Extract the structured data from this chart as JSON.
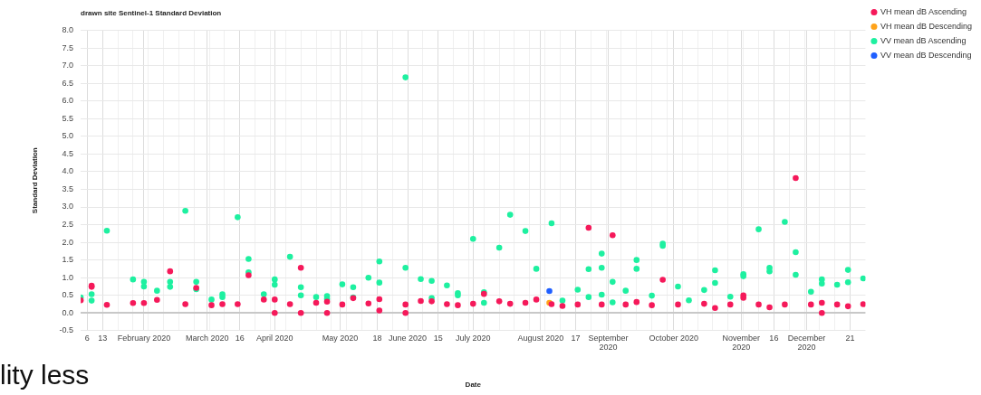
{
  "chart_data": {
    "type": "scatter",
    "title": "drawn site Sentinel-1 Standard Deviation",
    "xlabel": "Date",
    "ylabel": "Standard Deviation",
    "annotations": [
      "lity less"
    ],
    "xlim": [
      "2020-01-03",
      "2020-12-28"
    ],
    "xticks": [
      {
        "value": "2020-01-06",
        "label": "6"
      },
      {
        "value": "2020-01-13",
        "label": "13"
      },
      {
        "value": "2020-01-20",
        "label": null
      },
      {
        "value": "2020-01-27",
        "label": null
      },
      {
        "value": "2020-02-01",
        "label": "February 2020"
      },
      {
        "value": "2020-02-03",
        "label": null
      },
      {
        "value": "2020-02-10",
        "label": null
      },
      {
        "value": "2020-02-17",
        "label": null
      },
      {
        "value": "2020-02-24",
        "label": null
      },
      {
        "value": "2020-03-01",
        "label": "March 2020"
      },
      {
        "value": "2020-03-02",
        "label": null
      },
      {
        "value": "2020-03-09",
        "label": null
      },
      {
        "value": "2020-03-16",
        "label": "16"
      },
      {
        "value": "2020-03-23",
        "label": null
      },
      {
        "value": "2020-03-30",
        "label": null
      },
      {
        "value": "2020-04-01",
        "label": "April 2020"
      },
      {
        "value": "2020-04-06",
        "label": null
      },
      {
        "value": "2020-04-13",
        "label": null
      },
      {
        "value": "2020-04-20",
        "label": null
      },
      {
        "value": "2020-04-27",
        "label": null
      },
      {
        "value": "2020-05-01",
        "label": "May 2020"
      },
      {
        "value": "2020-05-04",
        "label": null
      },
      {
        "value": "2020-05-11",
        "label": null
      },
      {
        "value": "2020-05-18",
        "label": "18"
      },
      {
        "value": "2020-05-25",
        "label": null
      },
      {
        "value": "2020-06-01",
        "label": "June 2020"
      },
      {
        "value": "2020-06-08",
        "label": null
      },
      {
        "value": "2020-06-15",
        "label": "15"
      },
      {
        "value": "2020-06-22",
        "label": null
      },
      {
        "value": "2020-06-29",
        "label": null
      },
      {
        "value": "2020-07-01",
        "label": "July 2020"
      },
      {
        "value": "2020-07-06",
        "label": null
      },
      {
        "value": "2020-07-13",
        "label": null
      },
      {
        "value": "2020-07-20",
        "label": null
      },
      {
        "value": "2020-07-27",
        "label": null
      },
      {
        "value": "2020-08-01",
        "label": "August 2020"
      },
      {
        "value": "2020-08-03",
        "label": null
      },
      {
        "value": "2020-08-10",
        "label": null
      },
      {
        "value": "2020-08-17",
        "label": "17"
      },
      {
        "value": "2020-08-24",
        "label": null
      },
      {
        "value": "2020-08-31",
        "label": null
      },
      {
        "value": "2020-09-01",
        "label": "September 2020"
      },
      {
        "value": "2020-09-07",
        "label": null
      },
      {
        "value": "2020-09-14",
        "label": null
      },
      {
        "value": "2020-09-21",
        "label": null
      },
      {
        "value": "2020-09-28",
        "label": null
      },
      {
        "value": "2020-10-01",
        "label": "October 2020"
      },
      {
        "value": "2020-10-05",
        "label": null
      },
      {
        "value": "2020-10-12",
        "label": null
      },
      {
        "value": "2020-10-19",
        "label": null
      },
      {
        "value": "2020-10-26",
        "label": null
      },
      {
        "value": "2020-11-01",
        "label": "November 2020"
      },
      {
        "value": "2020-11-02",
        "label": null
      },
      {
        "value": "2020-11-09",
        "label": null
      },
      {
        "value": "2020-11-16",
        "label": "16"
      },
      {
        "value": "2020-11-23",
        "label": null
      },
      {
        "value": "2020-11-30",
        "label": null
      },
      {
        "value": "2020-12-01",
        "label": "December 2020"
      },
      {
        "value": "2020-12-07",
        "label": null
      },
      {
        "value": "2020-12-14",
        "label": null
      },
      {
        "value": "2020-12-21",
        "label": "21"
      }
    ],
    "ylim": [
      -0.5,
      8
    ],
    "yticks": [
      {
        "value": -0.5,
        "label": "-0.5"
      },
      {
        "value": 0,
        "label": "0.0"
      },
      {
        "value": 0.5,
        "label": "0.5"
      },
      {
        "value": 1,
        "label": "1.0"
      },
      {
        "value": 1.5,
        "label": "1.5"
      },
      {
        "value": 2,
        "label": "2.0"
      },
      {
        "value": 2.5,
        "label": "2.5"
      },
      {
        "value": 3,
        "label": "3.0"
      },
      {
        "value": 3.5,
        "label": "3.5"
      },
      {
        "value": 4,
        "label": "4.0"
      },
      {
        "value": 4.5,
        "label": "4.5"
      },
      {
        "value": 5,
        "label": "5.0"
      },
      {
        "value": 5.5,
        "label": "5.5"
      },
      {
        "value": 6,
        "label": "6.0"
      },
      {
        "value": 6.5,
        "label": "6.5"
      },
      {
        "value": 7,
        "label": "7.0"
      },
      {
        "value": 7.5,
        "label": "7.5"
      },
      {
        "value": 8,
        "label": "8.0"
      }
    ],
    "grid": true,
    "legend": "right",
    "marker": "circle",
    "series": [
      {
        "name": "VH mean dB Ascending",
        "color": "#f5195a",
        "x": [
          "2020-01-03",
          "2020-01-08",
          "2020-01-08",
          "2020-01-15",
          "2020-01-27",
          "2020-02-01",
          "2020-02-07",
          "2020-02-13",
          "2020-02-20",
          "2020-02-25",
          "2020-03-03",
          "2020-03-08",
          "2020-03-15",
          "2020-03-20",
          "2020-03-27",
          "2020-04-01",
          "2020-04-01",
          "2020-04-08",
          "2020-04-13",
          "2020-04-13",
          "2020-04-20",
          "2020-04-25",
          "2020-04-25",
          "2020-05-02",
          "2020-05-07",
          "2020-05-14",
          "2020-05-19",
          "2020-05-19",
          "2020-05-31",
          "2020-05-31",
          "2020-06-07",
          "2020-06-12",
          "2020-06-19",
          "2020-06-24",
          "2020-07-01",
          "2020-07-06",
          "2020-07-13",
          "2020-07-18",
          "2020-07-25",
          "2020-07-30",
          "2020-08-06",
          "2020-08-11",
          "2020-08-18",
          "2020-08-23",
          "2020-08-29",
          "2020-09-03",
          "2020-09-09",
          "2020-09-14",
          "2020-09-21",
          "2020-09-26",
          "2020-10-03",
          "2020-10-15",
          "2020-10-20",
          "2020-10-27",
          "2020-11-02",
          "2020-11-02",
          "2020-11-09",
          "2020-11-14",
          "2020-11-21",
          "2020-11-26",
          "2020-12-03",
          "2020-12-08",
          "2020-12-08",
          "2020-12-15",
          "2020-12-20",
          "2020-12-27"
        ],
        "values": [
          0.36,
          0.77,
          0.74,
          0.23,
          0.28,
          0.28,
          0.37,
          1.18,
          0.25,
          0.71,
          0.22,
          0.25,
          0.25,
          1.07,
          0.38,
          0.38,
          0.0,
          0.25,
          1.28,
          0.0,
          0.29,
          0.32,
          0.0,
          0.24,
          0.42,
          0.27,
          0.39,
          0.07,
          0.24,
          0.0,
          0.34,
          0.33,
          0.25,
          0.22,
          0.26,
          0.54,
          0.33,
          0.26,
          0.29,
          0.38,
          0.25,
          0.2,
          0.24,
          2.41,
          0.24,
          2.2,
          0.24,
          0.31,
          0.22,
          0.94,
          0.24,
          0.26,
          0.14,
          0.24,
          0.5,
          0.43,
          0.24,
          0.16,
          0.24,
          3.82,
          0.24,
          0.29,
          0.0,
          0.24,
          0.19,
          0.25
        ]
      },
      {
        "name": "VH mean dB Descending",
        "color": "#ffa31a",
        "x": [
          "2020-08-05"
        ],
        "values": [
          0.29
        ]
      },
      {
        "name": "VV mean dB Ascending",
        "color": "#1ef0a0",
        "x": [
          "2020-01-03",
          "2020-01-08",
          "2020-01-08",
          "2020-01-15",
          "2020-01-27",
          "2020-02-01",
          "2020-02-01",
          "2020-02-07",
          "2020-02-13",
          "2020-02-13",
          "2020-02-20",
          "2020-02-25",
          "2020-02-25",
          "2020-03-03",
          "2020-03-08",
          "2020-03-08",
          "2020-03-15",
          "2020-03-20",
          "2020-03-20",
          "2020-03-27",
          "2020-04-01",
          "2020-04-01",
          "2020-04-08",
          "2020-04-13",
          "2020-04-13",
          "2020-04-20",
          "2020-04-25",
          "2020-04-25",
          "2020-05-02",
          "2020-05-07",
          "2020-05-07",
          "2020-05-14",
          "2020-05-19",
          "2020-05-19",
          "2020-05-31",
          "2020-05-31",
          "2020-06-07",
          "2020-06-12",
          "2020-06-12",
          "2020-06-19",
          "2020-06-24",
          "2020-06-24",
          "2020-07-01",
          "2020-07-06",
          "2020-07-06",
          "2020-07-13",
          "2020-07-18",
          "2020-07-25",
          "2020-07-30",
          "2020-08-06",
          "2020-08-11",
          "2020-08-18",
          "2020-08-23",
          "2020-08-23",
          "2020-08-29",
          "2020-08-29",
          "2020-08-29",
          "2020-09-03",
          "2020-09-03",
          "2020-09-09",
          "2020-09-14",
          "2020-09-14",
          "2020-09-21",
          "2020-09-26",
          "2020-09-26",
          "2020-10-03",
          "2020-10-08",
          "2020-10-15",
          "2020-10-20",
          "2020-10-20",
          "2020-10-27",
          "2020-11-02",
          "2020-11-02",
          "2020-11-09",
          "2020-11-14",
          "2020-11-14",
          "2020-11-21",
          "2020-11-26",
          "2020-11-26",
          "2020-12-03",
          "2020-12-08",
          "2020-12-08",
          "2020-12-15",
          "2020-12-20",
          "2020-12-20",
          "2020-12-27"
        ],
        "values": [
          0.44,
          0.53,
          0.35,
          2.33,
          0.95,
          0.88,
          0.75,
          0.63,
          0.88,
          0.74,
          2.89,
          0.88,
          0.67,
          0.38,
          0.53,
          0.45,
          2.71,
          1.53,
          1.15,
          0.53,
          0.95,
          0.8,
          1.59,
          0.73,
          0.5,
          0.45,
          0.48,
          0.4,
          0.81,
          0.73,
          0.44,
          1.0,
          1.46,
          0.86,
          6.67,
          1.28,
          0.96,
          0.91,
          0.42,
          0.78,
          0.56,
          0.5,
          2.1,
          0.59,
          0.29,
          1.85,
          2.78,
          2.32,
          1.25,
          2.54,
          0.35,
          0.66,
          1.24,
          0.45,
          1.68,
          1.28,
          0.52,
          0.88,
          0.3,
          0.63,
          1.5,
          1.25,
          0.49,
          1.96,
          1.9,
          0.75,
          0.36,
          0.65,
          1.21,
          0.85,
          0.46,
          1.1,
          1.04,
          2.37,
          1.28,
          1.18,
          2.58,
          1.72,
          1.08,
          0.6,
          0.95,
          0.83,
          0.8,
          1.22,
          0.87,
          0.98
        ]
      },
      {
        "name": "VV mean dB Descending",
        "color": "#1f5fff",
        "x": [
          "2020-08-05"
        ],
        "values": [
          0.62
        ]
      }
    ]
  }
}
